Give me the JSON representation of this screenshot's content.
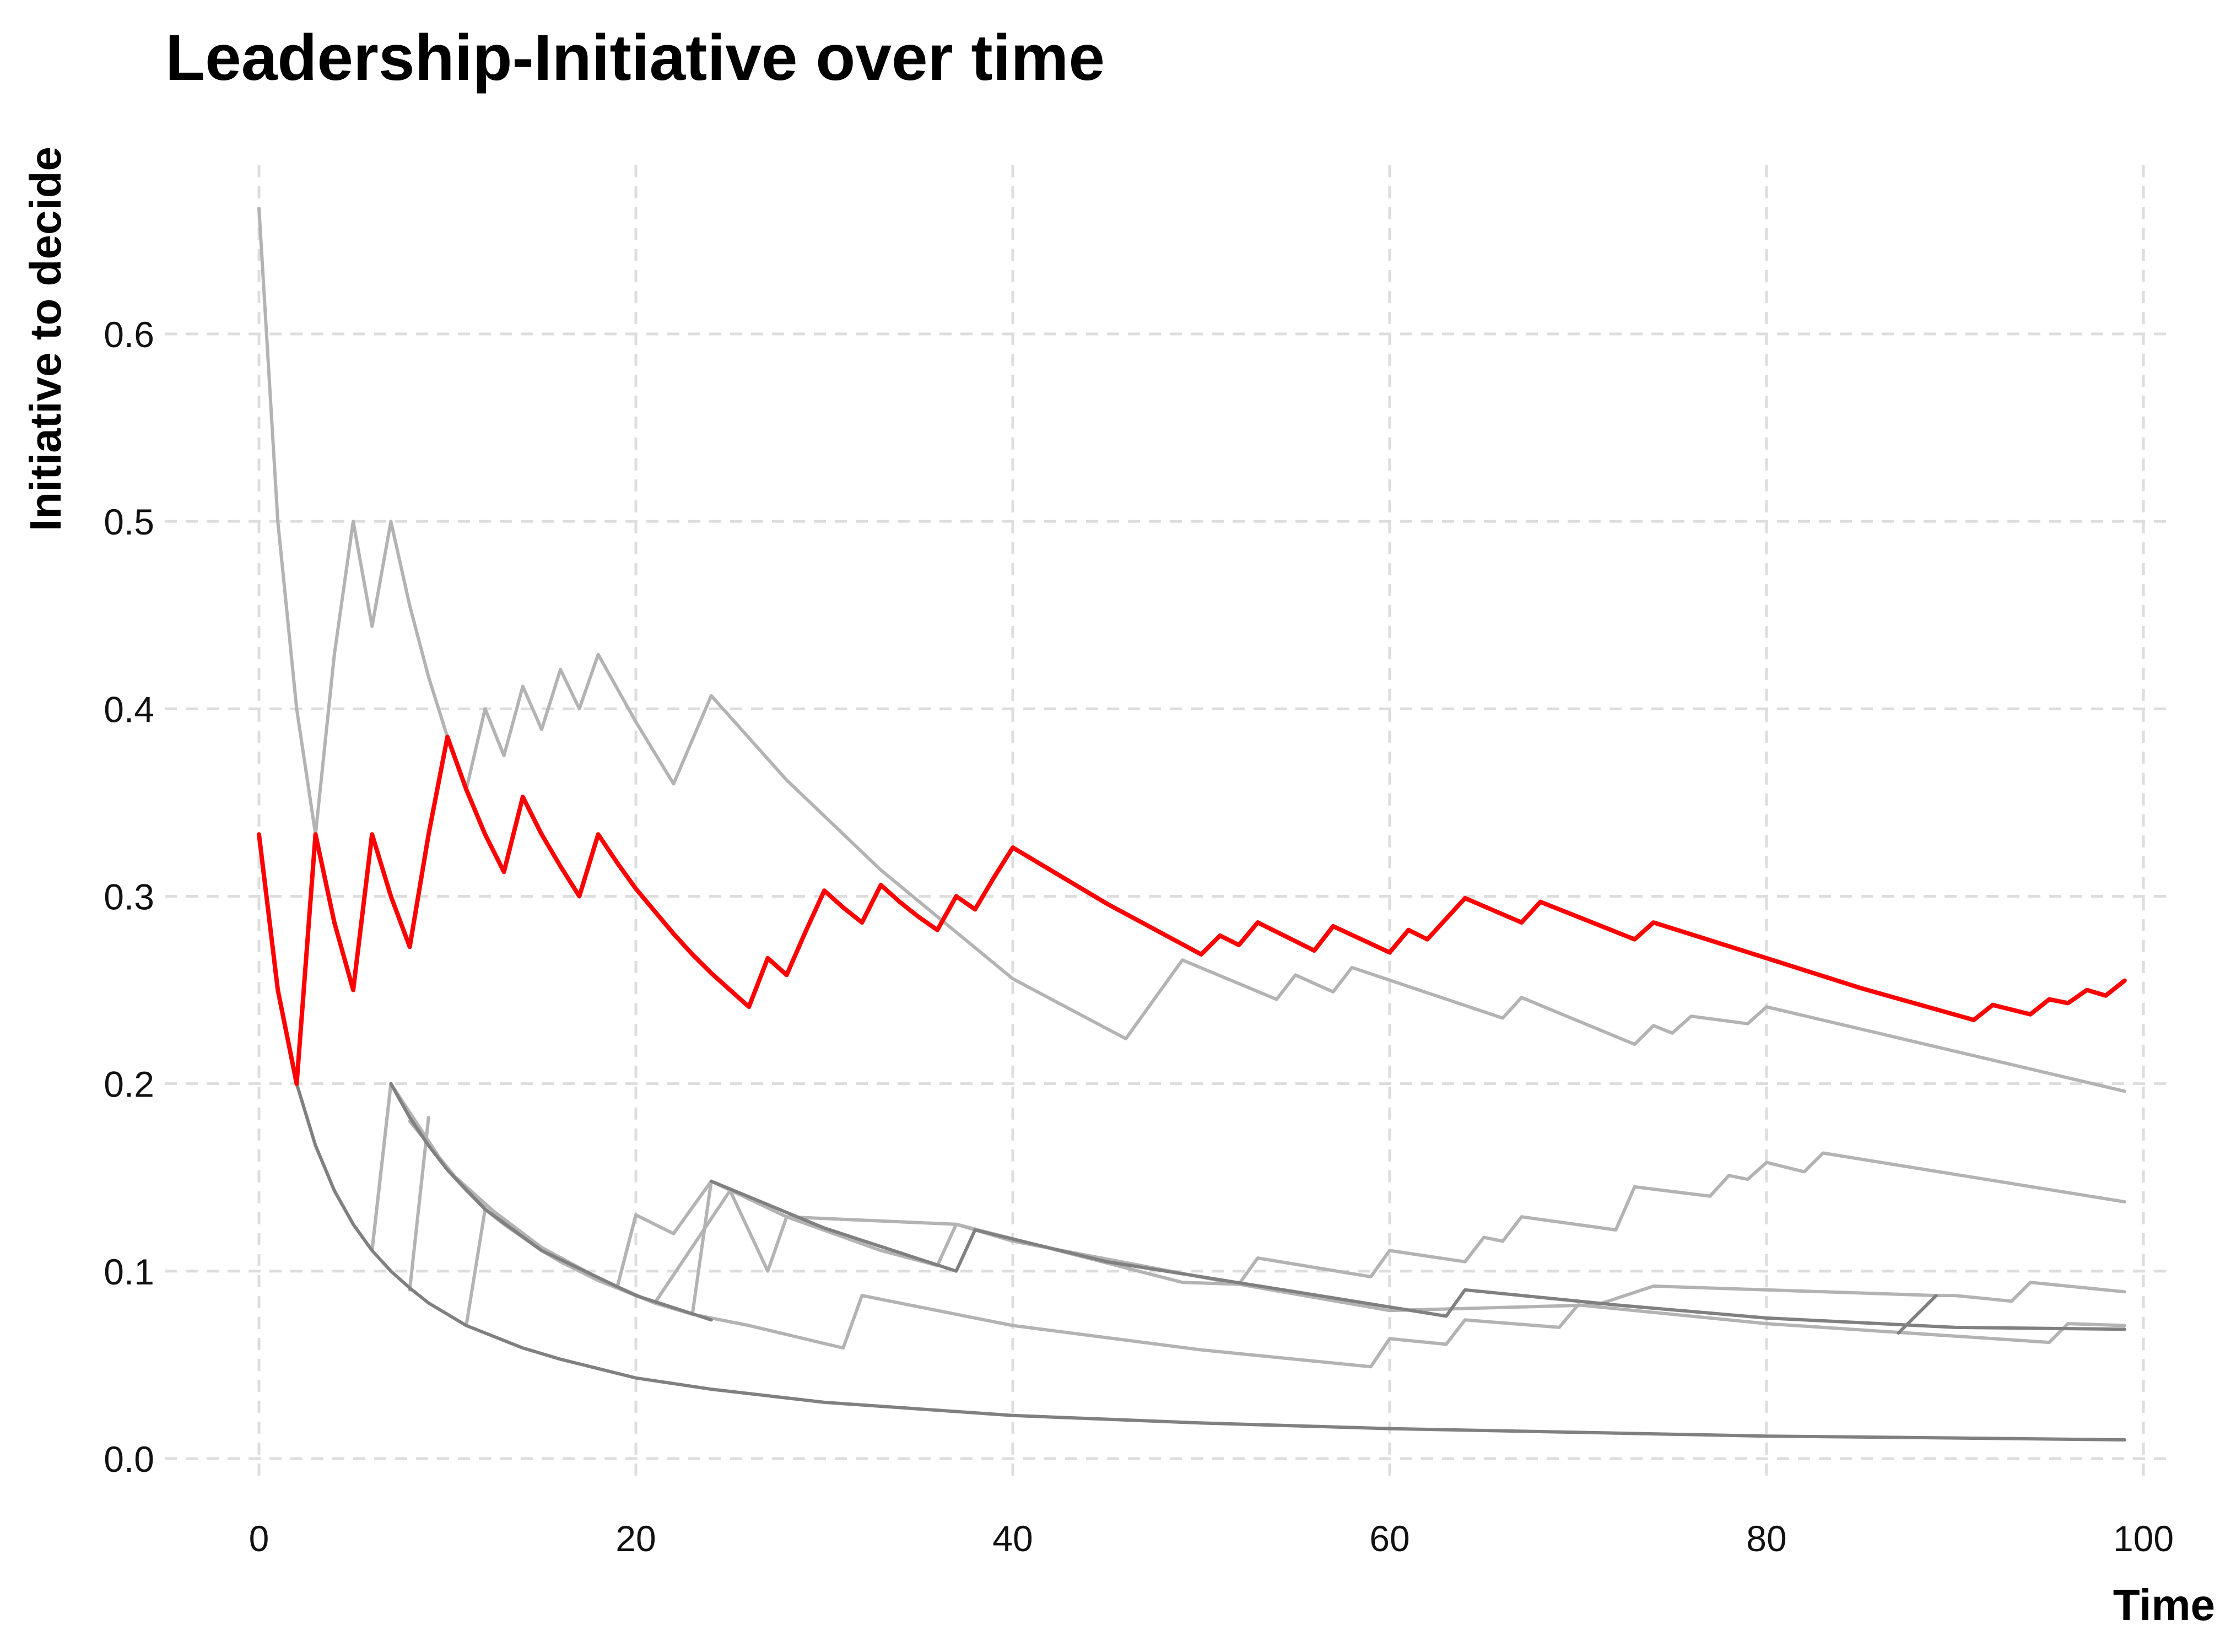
{
  "chart_data": {
    "type": "line",
    "title": "Leadership-Initiative over time",
    "xlabel": "Time",
    "ylabel": "Initiative to decide",
    "xlim": [
      -5,
      101.5
    ],
    "ylim": [
      -0.01,
      0.69
    ],
    "x_ticks": [
      "0",
      "20",
      "40",
      "60",
      "80",
      "100"
    ],
    "y_ticks": [
      "0.0",
      "0.1",
      "0.2",
      "0.3",
      "0.4",
      "0.5",
      "0.6"
    ],
    "grid": true,
    "legend": "none",
    "colors": {
      "highlight": "#ff0000",
      "light": "#b3b3b3",
      "dark": "#808080"
    },
    "series": [
      {
        "highlight": true,
        "points": [
          [
            0,
            0.333
          ],
          [
            1,
            0.25
          ],
          [
            2,
            0.2
          ],
          [
            3,
            0.333
          ],
          [
            4,
            0.286
          ],
          [
            5,
            0.25
          ],
          [
            6,
            0.333
          ],
          [
            7,
            0.3
          ],
          [
            8,
            0.273
          ],
          [
            9,
            0.333
          ],
          [
            10,
            0.385
          ],
          [
            11,
            0.357
          ],
          [
            12,
            0.333
          ],
          [
            13,
            0.313
          ],
          [
            14,
            0.353
          ],
          [
            15,
            0.333
          ],
          [
            16,
            0.316
          ],
          [
            17,
            0.3
          ],
          [
            18,
            0.333
          ],
          [
            19,
            0.318
          ],
          [
            20,
            0.304
          ],
          [
            21,
            0.292
          ],
          [
            22,
            0.28
          ],
          [
            23,
            0.269
          ],
          [
            24,
            0.259
          ],
          [
            25,
            0.25
          ],
          [
            26,
            0.241
          ],
          [
            27,
            0.267
          ],
          [
            28,
            0.258
          ],
          [
            29,
            0.281
          ],
          [
            30,
            0.303
          ],
          [
            31,
            0.294
          ],
          [
            32,
            0.286
          ],
          [
            33,
            0.306
          ],
          [
            34,
            0.297
          ],
          [
            35,
            0.289
          ],
          [
            36,
            0.282
          ],
          [
            37,
            0.3
          ],
          [
            38,
            0.293
          ],
          [
            39,
            0.31
          ],
          [
            40,
            0.326
          ],
          [
            45,
            0.296
          ],
          [
            50,
            0.269
          ],
          [
            51,
            0.279
          ],
          [
            52,
            0.274
          ],
          [
            53,
            0.286
          ],
          [
            56,
            0.271
          ],
          [
            57,
            0.284
          ],
          [
            60,
            0.27
          ],
          [
            61,
            0.282
          ],
          [
            62,
            0.277
          ],
          [
            64,
            0.299
          ],
          [
            67,
            0.286
          ],
          [
            68,
            0.297
          ],
          [
            73,
            0.277
          ],
          [
            74,
            0.286
          ],
          [
            80,
            0.267
          ],
          [
            85,
            0.251
          ],
          [
            91,
            0.234
          ],
          [
            92,
            0.242
          ],
          [
            94,
            0.237
          ],
          [
            95,
            0.245
          ],
          [
            96,
            0.243
          ],
          [
            97,
            0.25
          ],
          [
            98,
            0.247
          ],
          [
            99,
            0.255
          ]
        ]
      },
      {
        "shade": "light",
        "points": [
          [
            0,
            0.667
          ],
          [
            1,
            0.5
          ],
          [
            2,
            0.4
          ],
          [
            3,
            0.333
          ],
          [
            4,
            0.429
          ],
          [
            5,
            0.5
          ],
          [
            6,
            0.444
          ],
          [
            7,
            0.5
          ],
          [
            8,
            0.455
          ],
          [
            9,
            0.417
          ],
          [
            10,
            0.385
          ],
          [
            11,
            0.357
          ],
          [
            12,
            0.4
          ],
          [
            13,
            0.375
          ],
          [
            14,
            0.412
          ],
          [
            15,
            0.389
          ],
          [
            16,
            0.421
          ],
          [
            17,
            0.4
          ],
          [
            18,
            0.429
          ],
          [
            20,
            0.393
          ],
          [
            22,
            0.36
          ],
          [
            24,
            0.407
          ],
          [
            28,
            0.362
          ],
          [
            33,
            0.314
          ],
          [
            40,
            0.256
          ],
          [
            46,
            0.224
          ],
          [
            49,
            0.266
          ],
          [
            54,
            0.245
          ],
          [
            55,
            0.258
          ],
          [
            57,
            0.249
          ],
          [
            58,
            0.262
          ],
          [
            66,
            0.235
          ],
          [
            67,
            0.246
          ],
          [
            73,
            0.221
          ],
          [
            74,
            0.231
          ],
          [
            75,
            0.227
          ],
          [
            76,
            0.236
          ],
          [
            79,
            0.232
          ],
          [
            80,
            0.241
          ],
          [
            99,
            0.196
          ]
        ]
      },
      {
        "shade": "light",
        "points": [
          [
            2,
            0.2
          ],
          [
            3,
            0.167
          ],
          [
            4,
            0.143
          ],
          [
            5,
            0.125
          ],
          [
            6,
            0.111
          ],
          [
            7,
            0.2
          ],
          [
            8,
            0.182
          ],
          [
            9,
            0.167
          ],
          [
            10,
            0.154
          ],
          [
            11,
            0.143
          ],
          [
            12,
            0.133
          ],
          [
            13,
            0.125
          ],
          [
            14,
            0.118
          ],
          [
            15,
            0.111
          ],
          [
            16,
            0.105
          ],
          [
            17,
            0.1
          ],
          [
            18,
            0.095
          ],
          [
            19,
            0.091
          ],
          [
            20,
            0.13
          ],
          [
            22,
            0.12
          ],
          [
            24,
            0.148
          ],
          [
            28,
            0.129
          ],
          [
            33,
            0.111
          ],
          [
            36,
            0.103
          ],
          [
            37,
            0.125
          ],
          [
            40,
            0.116
          ],
          [
            52,
            0.093
          ],
          [
            53,
            0.107
          ],
          [
            59,
            0.097
          ],
          [
            60,
            0.111
          ],
          [
            64,
            0.105
          ],
          [
            65,
            0.118
          ],
          [
            66,
            0.116
          ],
          [
            67,
            0.129
          ],
          [
            72,
            0.122
          ],
          [
            73,
            0.145
          ],
          [
            77,
            0.14
          ],
          [
            78,
            0.151
          ],
          [
            79,
            0.149
          ],
          [
            80,
            0.158
          ],
          [
            82,
            0.153
          ],
          [
            83,
            0.163
          ],
          [
            99,
            0.137
          ]
        ]
      },
      {
        "shade": "light",
        "points": [
          [
            7,
            0.2
          ],
          [
            10,
            0.154
          ],
          [
            14,
            0.118
          ],
          [
            19,
            0.091
          ],
          [
            21,
            0.083
          ],
          [
            25,
            0.143
          ],
          [
            27,
            0.1
          ],
          [
            28,
            0.129
          ],
          [
            37,
            0.125
          ],
          [
            49,
            0.094
          ],
          [
            52,
            0.093
          ],
          [
            60,
            0.079
          ],
          [
            71,
            0.082
          ],
          [
            74,
            0.092
          ],
          [
            89,
            0.087
          ],
          [
            90,
            0.087
          ],
          [
            93,
            0.084
          ],
          [
            94,
            0.094
          ],
          [
            99,
            0.089
          ]
        ]
      },
      {
        "shade": "light",
        "points": [
          [
            8,
            0.18
          ],
          [
            11,
            0.143
          ],
          [
            16,
            0.105
          ],
          [
            21,
            0.083
          ],
          [
            23,
            0.077
          ],
          [
            26,
            0.071
          ],
          [
            31,
            0.059
          ],
          [
            32,
            0.087
          ],
          [
            40,
            0.071
          ],
          [
            50,
            0.058
          ],
          [
            59,
            0.049
          ],
          [
            60,
            0.064
          ],
          [
            63,
            0.061
          ],
          [
            64,
            0.074
          ],
          [
            69,
            0.07
          ],
          [
            70,
            0.082
          ],
          [
            80,
            0.072
          ],
          [
            89,
            0.066
          ],
          [
            95,
            0.062
          ],
          [
            96,
            0.072
          ],
          [
            99,
            0.071
          ]
        ]
      },
      {
        "shade": "light",
        "points": [
          [
            6,
            0.111
          ],
          [
            7,
            0.2
          ]
        ]
      },
      {
        "shade": "light",
        "points": [
          [
            8,
            0.09
          ],
          [
            9,
            0.182
          ]
        ]
      },
      {
        "shade": "light",
        "points": [
          [
            11,
            0.071
          ],
          [
            12,
            0.133
          ]
        ]
      },
      {
        "shade": "light",
        "points": [
          [
            19,
            0.091
          ],
          [
            20,
            0.13
          ]
        ]
      },
      {
        "shade": "light",
        "points": [
          [
            23,
            0.077
          ],
          [
            24,
            0.148
          ]
        ]
      },
      {
        "shade": "dark",
        "points": [
          [
            2,
            0.2
          ],
          [
            3,
            0.167
          ],
          [
            4,
            0.143
          ],
          [
            5,
            0.125
          ],
          [
            6,
            0.111
          ],
          [
            7,
            0.1
          ],
          [
            8,
            0.091
          ],
          [
            9,
            0.083
          ],
          [
            10,
            0.077
          ],
          [
            11,
            0.071
          ],
          [
            12,
            0.067
          ],
          [
            14,
            0.059
          ],
          [
            16,
            0.053
          ],
          [
            18,
            0.048
          ],
          [
            20,
            0.043
          ],
          [
            24,
            0.037
          ],
          [
            30,
            0.03
          ],
          [
            40,
            0.023
          ],
          [
            50,
            0.019
          ],
          [
            60,
            0.016
          ],
          [
            70,
            0.014
          ],
          [
            80,
            0.012
          ],
          [
            90,
            0.011
          ],
          [
            99,
            0.01
          ]
        ]
      },
      {
        "shade": "dark",
        "points": [
          [
            7,
            0.2
          ],
          [
            8,
            0.182
          ],
          [
            9,
            0.167
          ],
          [
            10,
            0.154
          ],
          [
            12,
            0.133
          ],
          [
            15,
            0.111
          ],
          [
            20,
            0.087
          ],
          [
            24,
            0.074
          ]
        ]
      },
      {
        "shade": "dark",
        "points": [
          [
            24,
            0.148
          ],
          [
            30,
            0.123
          ],
          [
            37,
            0.1
          ],
          [
            38,
            0.122
          ],
          [
            45,
            0.105
          ],
          [
            55,
            0.089
          ],
          [
            63,
            0.076
          ],
          [
            64,
            0.09
          ],
          [
            72,
            0.082
          ],
          [
            80,
            0.075
          ],
          [
            90,
            0.07
          ],
          [
            99,
            0.069
          ]
        ]
      },
      {
        "shade": "dark",
        "points": [
          [
            87,
            0.067
          ],
          [
            89,
            0.087
          ]
        ]
      }
    ]
  }
}
